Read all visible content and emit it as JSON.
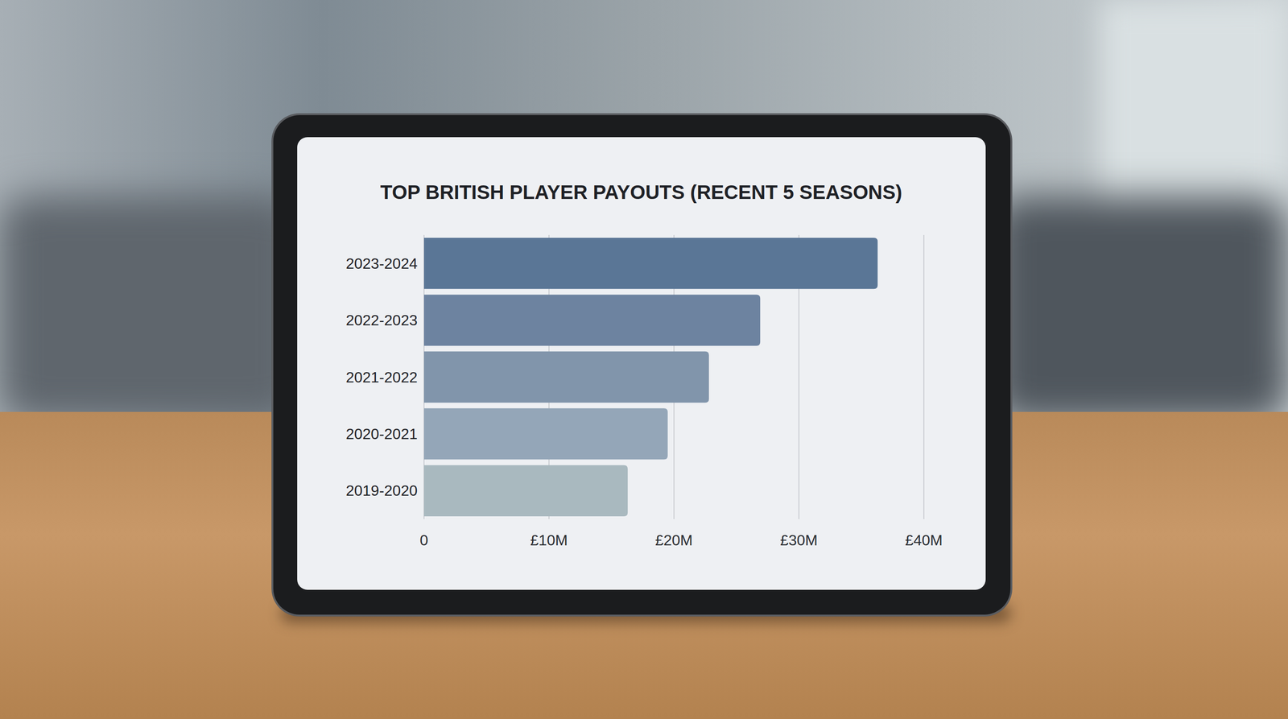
{
  "chart_data": {
    "type": "bar",
    "orientation": "horizontal",
    "title": "TOP BRITISH PLAYER PAYOUTS (RECENT 5 SEASONS)",
    "categories": [
      "2023-2024",
      "2022-2023",
      "2021-2022",
      "2020-2021",
      "2019-2020"
    ],
    "values": [
      36.3,
      26.9,
      22.8,
      19.5,
      16.3
    ],
    "colors": [
      "#5a7696",
      "#6d83a0",
      "#8195ab",
      "#94a6b8",
      "#a9b9bf"
    ],
    "xlim": [
      0,
      40
    ],
    "xticks": [
      0,
      {
        "value": 10,
        "label": "£10M"
      },
      {
        "value": 20,
        "label": "£20M"
      },
      {
        "value": 30,
        "label": "£30M"
      },
      {
        "value": 40,
        "label": "£40M"
      }
    ],
    "grid": true
  }
}
